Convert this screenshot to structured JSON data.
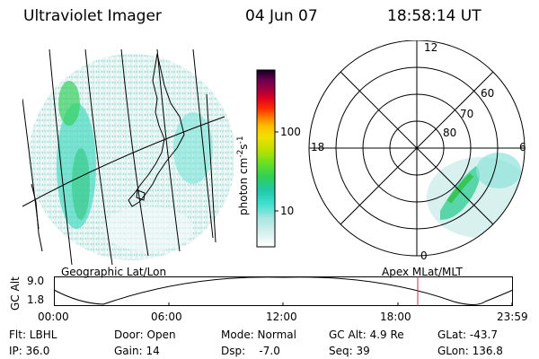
{
  "header": {
    "instrument": "Ultraviolet Imager",
    "date": "04 Jun 07",
    "time": "18:58:14 UT"
  },
  "geo_panel": {
    "label": "Geographic Lat/Lon"
  },
  "polar_panel": {
    "label": "Apex  MLat/MLT",
    "mlt_labels": {
      "top": "12",
      "left": "18",
      "right": "6",
      "bottom": "0"
    },
    "lat_labels": [
      "60",
      "70",
      "80"
    ]
  },
  "colorbar": {
    "unit_label": "photon cm",
    "unit_sup1": "-2",
    "unit_s": "s",
    "unit_sup2": "-1",
    "tick_100": "100",
    "tick_10": "10",
    "colors": [
      "#ffffff",
      "#d8f0ee",
      "#a8e6e0",
      "#40e0d0",
      "#20c8a8",
      "#30d050",
      "#70e020",
      "#c0e000",
      "#f0e000",
      "#ffc000",
      "#ff8000",
      "#ff3000",
      "#e00020",
      "#a00040",
      "#700050",
      "#400040",
      "#100020"
    ]
  },
  "altitude_plot": {
    "axis_title": "GC Alt",
    "y_top": "9.0",
    "y_bottom": "1.8",
    "x_ticks": [
      "00:00",
      "06:00",
      "12:00",
      "18:00",
      "23:59"
    ],
    "current_time": "18:58"
  },
  "info": {
    "filter": "Flt: LBHL",
    "ip": "IP: 36.0",
    "door": "Door: Open",
    "gain": "Gain: 14",
    "mode": "Mode: Normal",
    "dsp": "Dsp:    -7.0",
    "gc_alt": "GC Alt: 4.9 Re",
    "seq": "Seq: 39",
    "glat": "GLat: -43.7",
    "glon": "GLon: 136.8"
  }
}
